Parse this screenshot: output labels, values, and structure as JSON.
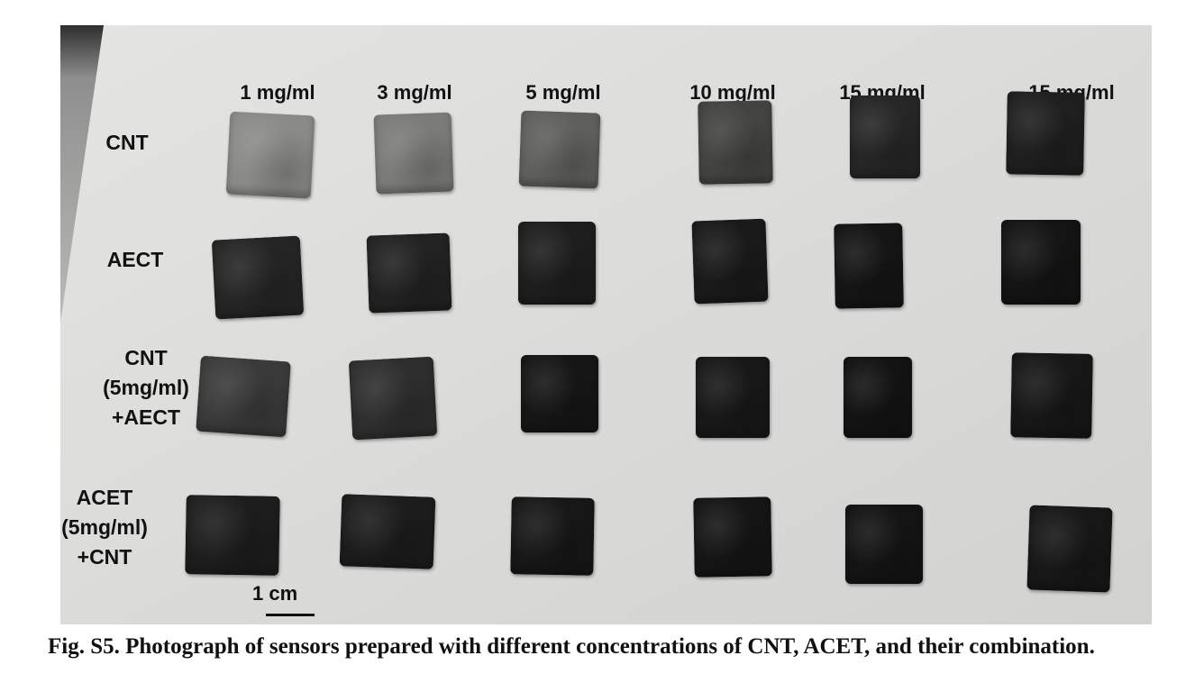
{
  "photo": {
    "column_labels": [
      "1 mg/ml",
      "3 mg/ml",
      "5 mg/ml",
      "10 mg/ml",
      "15 mg/ml",
      "15 mg/ml"
    ],
    "row_labels": [
      {
        "lines": [
          "CNT"
        ]
      },
      {
        "lines": [
          "AECT"
        ]
      },
      {
        "lines": [
          "CNT",
          "(5mg/ml)",
          "+AECT"
        ]
      },
      {
        "lines": [
          "ACET",
          "(5mg/ml)",
          "+CNT"
        ]
      }
    ],
    "scale_bar_label": "1 cm",
    "sample_colors": [
      [
        "#8a8a88",
        "#7b7b79",
        "#5f5f5d",
        "#434341",
        "#262626",
        "#1f1f1f"
      ],
      [
        "#252525",
        "#222222",
        "#1e1e1e",
        "#1a1a1a",
        "#151515",
        "#141414"
      ],
      [
        "#3a3a3a",
        "#2e2e2e",
        "#161616",
        "#181818",
        "#131313",
        "#171717"
      ],
      [
        "#1d1d1d",
        "#1c1c1c",
        "#171717",
        "#151515",
        "#141414",
        "#171717"
      ]
    ]
  },
  "caption": "Fig. S5. Photograph of sensors prepared with different concentrations of CNT, ACET, and their combination."
}
